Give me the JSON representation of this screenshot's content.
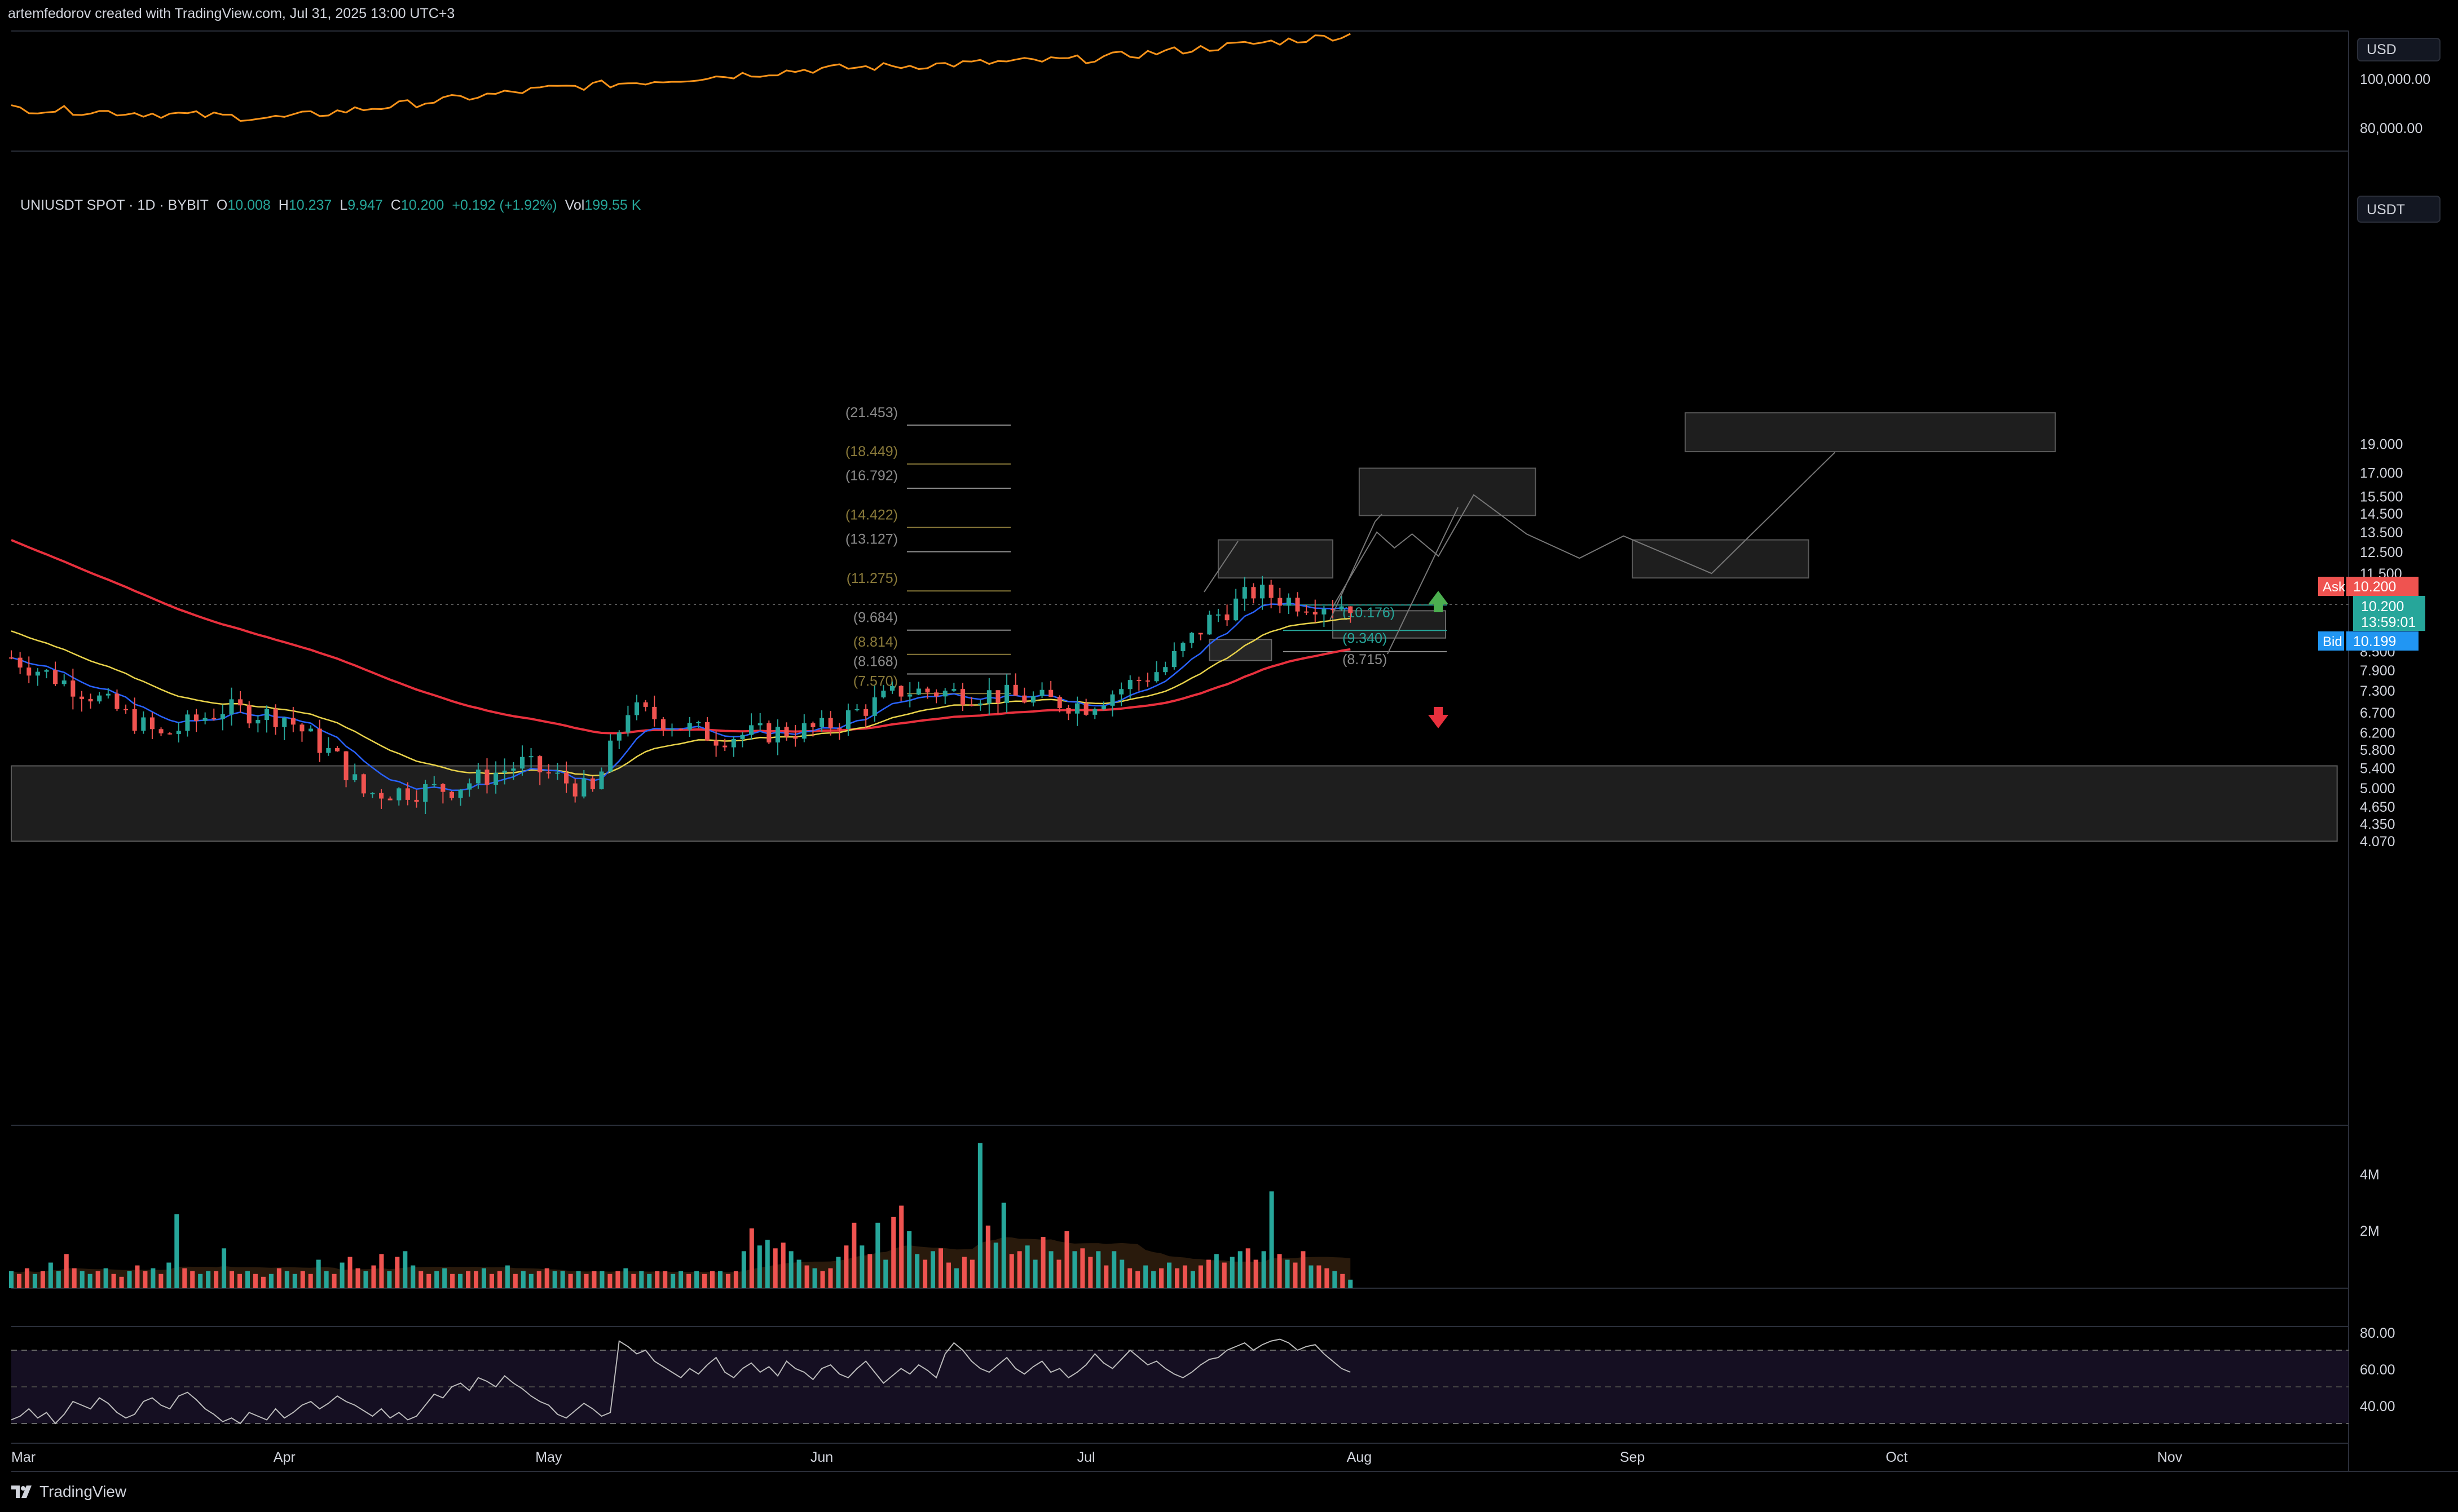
{
  "header": {
    "attribution": "artemfedorov created with TradingView.com, Jul 31, 2025 13:00 UTC+3",
    "brand": "TradingView"
  },
  "legend": {
    "symbol": "UNIUSDT SPOT · 1D · BYBIT",
    "open_label": "O",
    "open": "10.008",
    "high_label": "H",
    "high": "10.237",
    "low_label": "L",
    "low": "9.947",
    "close_label": "C",
    "close": "10.200",
    "change": "+0.192 (+1.92%)",
    "vol_label": "Vol",
    "vol": "199.55 K"
  },
  "colors": {
    "background": "#000000",
    "up": "#26a69a",
    "down": "#ef5350",
    "btc_line": "#f7931a",
    "ema_fast": "#2962ff",
    "ema_mid": "#e8d24a",
    "ema_slow": "#e8303d",
    "ask": "#ef5350",
    "bid": "#2196f3",
    "last": "#26a69a"
  },
  "price_badges": {
    "ask_label": "Ask",
    "ask_value": "10.200",
    "last_value": "10.200",
    "countdown": "13:59:01",
    "bid_label": "Bid",
    "bid_value": "10.199"
  },
  "icons": [
    "arrow-up-icon",
    "arrow-down-icon",
    "tradingview-logo-icon"
  ],
  "chart_data": [
    {
      "type": "line",
      "name": "btc-overlay-pane",
      "unit_label": "USD",
      "y_ticks": [
        "100,000.00",
        "80,000.00"
      ],
      "x": [
        "Mar",
        "Apr",
        "May",
        "Jun",
        "Jul",
        "Aug"
      ],
      "values": [
        88000,
        84000,
        96000,
        104000,
        108000,
        118000
      ]
    },
    {
      "type": "candlestick",
      "name": "UNIUSDT",
      "unit_label": "USDT",
      "y_axis_scale": "log",
      "y_ticks": [
        "19.000",
        "17.000",
        "15.500",
        "14.500",
        "13.500",
        "12.500",
        "11.500",
        "8.500",
        "7.900",
        "7.300",
        "6.700",
        "6.200",
        "5.800",
        "5.400",
        "5.000",
        "4.650",
        "4.350",
        "4.070"
      ],
      "x_ticks": [
        "Mar",
        "Apr",
        "May",
        "Jun",
        "Jul",
        "Aug",
        "Sep",
        "Oct",
        "Nov"
      ],
      "last_price": 10.2,
      "close_path": [
        {
          "x": "Mar 01",
          "y": 8.3
        },
        {
          "x": "Mar 10",
          "y": 7.2
        },
        {
          "x": "Mar 18",
          "y": 6.1
        },
        {
          "x": "Mar 25",
          "y": 6.8
        },
        {
          "x": "Apr 01",
          "y": 6.6
        },
        {
          "x": "Apr 07",
          "y": 5.6
        },
        {
          "x": "Apr 10",
          "y": 4.9
        },
        {
          "x": "Apr 20",
          "y": 5.0
        },
        {
          "x": "Apr 28",
          "y": 5.5
        },
        {
          "x": "May 06",
          "y": 4.9
        },
        {
          "x": "May 10",
          "y": 6.8
        },
        {
          "x": "May 20",
          "y": 6.1
        },
        {
          "x": "Jun 01",
          "y": 6.3
        },
        {
          "x": "Jun 10",
          "y": 7.3
        },
        {
          "x": "Jun 20",
          "y": 7.2
        },
        {
          "x": "Jul 01",
          "y": 6.9
        },
        {
          "x": "Jul 10",
          "y": 8.0
        },
        {
          "x": "Jul 15",
          "y": 9.6
        },
        {
          "x": "Jul 20",
          "y": 10.7
        },
        {
          "x": "Jul 25",
          "y": 10.3
        },
        {
          "x": "Jul 31",
          "y": 10.2
        }
      ],
      "fib_levels": [
        {
          "label": "(21.453)",
          "value": 21.453
        },
        {
          "label": "(18.449)",
          "value": 18.449
        },
        {
          "label": "(16.792)",
          "value": 16.792
        },
        {
          "label": "(14.422)",
          "value": 14.422
        },
        {
          "label": "(13.127)",
          "value": 13.127
        },
        {
          "label": "(11.275)",
          "value": 11.275
        },
        {
          "label": "(9.684)",
          "value": 9.684
        },
        {
          "label": "(8.814)",
          "value": 8.814
        },
        {
          "label": "(8.168)",
          "value": 8.168
        },
        {
          "label": "(7.570)",
          "value": 7.57
        }
      ],
      "position_levels": [
        {
          "label": "(10.176)",
          "value": 10.176
        },
        {
          "label": "(9.340)",
          "value": 9.34
        },
        {
          "label": "(8.715)",
          "value": 8.715
        }
      ],
      "zones": [
        {
          "from": "Mar 01",
          "to": "Nov 20",
          "low": 4.07,
          "high": 5.45
        },
        {
          "from": "Jul 16",
          "to": "Jul 29",
          "low": 11.3,
          "high": 13.1
        },
        {
          "from": "Aug 01",
          "to": "Aug 21",
          "low": 14.4,
          "high": 17.3
        },
        {
          "from": "Sep 01",
          "to": "Sep 21",
          "low": 11.3,
          "high": 13.1
        },
        {
          "from": "Sep 07",
          "to": "Oct 19",
          "low": 18.45,
          "high": 21.45
        }
      ],
      "projection_path": [
        {
          "x": "Jul 29",
          "y": 10.1
        },
        {
          "x": "Aug 03",
          "y": 13.5
        },
        {
          "x": "Aug 05",
          "y": 12.7
        },
        {
          "x": "Aug 07",
          "y": 13.4
        },
        {
          "x": "Aug 10",
          "y": 12.3
        },
        {
          "x": "Aug 14",
          "y": 15.6
        },
        {
          "x": "Aug 20",
          "y": 13.4
        },
        {
          "x": "Aug 26",
          "y": 12.2
        },
        {
          "x": "Aug 31",
          "y": 13.3
        },
        {
          "x": "Sep 10",
          "y": 11.5
        },
        {
          "x": "Sep 24",
          "y": 18.4
        }
      ]
    },
    {
      "type": "bar",
      "name": "volume-pane",
      "y_ticks": [
        "4M",
        "2M"
      ],
      "values_note_units": "millions",
      "values": [
        0.6,
        0.5,
        0.7,
        0.5,
        0.6,
        0.9,
        0.6,
        1.2,
        0.7,
        0.6,
        0.5,
        0.6,
        0.7,
        0.5,
        0.4,
        0.6,
        0.8,
        0.6,
        0.7,
        0.5,
        0.9,
        2.6,
        0.7,
        0.6,
        0.5,
        0.6,
        0.6,
        1.4,
        0.6,
        0.5,
        0.6,
        0.5,
        0.4,
        0.5,
        0.7,
        0.6,
        0.5,
        0.6,
        0.5,
        1.0,
        0.6,
        0.5,
        0.9,
        1.1,
        0.7,
        0.6,
        0.8,
        1.2,
        0.6,
        1.1,
        1.3,
        0.8,
        0.6,
        0.5,
        0.6,
        0.7,
        0.5,
        0.5,
        0.6,
        0.6,
        0.7,
        0.5,
        0.6,
        0.8,
        0.5,
        0.6,
        0.5,
        0.6,
        0.7,
        0.6,
        0.6,
        0.5,
        0.6,
        0.5,
        0.6,
        0.6,
        0.5,
        0.6,
        0.7,
        0.5,
        0.6,
        0.5,
        0.6,
        0.6,
        0.5,
        0.6,
        0.5,
        0.6,
        0.5,
        0.6,
        0.6,
        0.5,
        0.6,
        1.3,
        2.1,
        1.5,
        1.7,
        1.4,
        1.6,
        1.3,
        1.0,
        0.8,
        0.7,
        0.6,
        0.7,
        1.1,
        1.5,
        2.3,
        1.5,
        1.2,
        2.3,
        1.0,
        2.5,
        2.9,
        2.0,
        1.2,
        1.0,
        1.3,
        1.4,
        0.9,
        0.7,
        1.1,
        1.0,
        5.1,
        2.2,
        1.6,
        3.0,
        1.2,
        1.3,
        1.5,
        1.0,
        1.8,
        1.3,
        1.0,
        2.0,
        1.3,
        1.4,
        1.1,
        1.3,
        0.8,
        1.3,
        1.0,
        0.7,
        0.6,
        0.8,
        0.6,
        0.7,
        0.9,
        0.7,
        0.8,
        0.6,
        0.8,
        1.0,
        1.2,
        0.9,
        1.1,
        1.3,
        1.4,
        1.0,
        1.3,
        3.4,
        1.2,
        1.0,
        0.9,
        1.3,
        0.8,
        0.8,
        0.7,
        0.6,
        0.5,
        0.3
      ]
    },
    {
      "type": "line",
      "name": "rsi-pane",
      "y_ticks": [
        "80.00",
        "60.00",
        "40.00"
      ],
      "bands": [
        70,
        30
      ],
      "values": [
        32,
        34,
        38,
        33,
        36,
        30,
        35,
        42,
        40,
        38,
        44,
        41,
        36,
        33,
        35,
        42,
        44,
        40,
        38,
        45,
        47,
        43,
        38,
        35,
        31,
        33,
        30,
        36,
        34,
        32,
        38,
        33,
        36,
        40,
        42,
        38,
        41,
        45,
        42,
        40,
        37,
        34,
        38,
        33,
        36,
        32,
        34,
        40,
        46,
        44,
        50,
        52,
        48,
        55,
        53,
        50,
        56,
        52,
        49,
        45,
        42,
        40,
        35,
        33,
        37,
        41,
        38,
        34,
        36,
        75,
        72,
        68,
        70,
        64,
        61,
        58,
        55,
        60,
        57,
        62,
        66,
        58,
        55,
        60,
        63,
        58,
        61,
        56,
        64,
        60,
        58,
        54,
        60,
        62,
        57,
        55,
        60,
        64,
        58,
        52,
        56,
        60,
        57,
        62,
        59,
        55,
        68,
        74,
        70,
        64,
        60,
        58,
        62,
        66,
        60,
        57,
        61,
        64,
        58,
        60,
        55,
        58,
        62,
        68,
        63,
        60,
        65,
        70,
        66,
        62,
        64,
        60,
        57,
        55,
        58,
        62,
        65,
        66,
        70,
        72,
        74,
        70,
        73,
        75,
        76,
        74,
        70,
        72,
        73,
        68,
        64,
        60,
        58
      ]
    }
  ]
}
